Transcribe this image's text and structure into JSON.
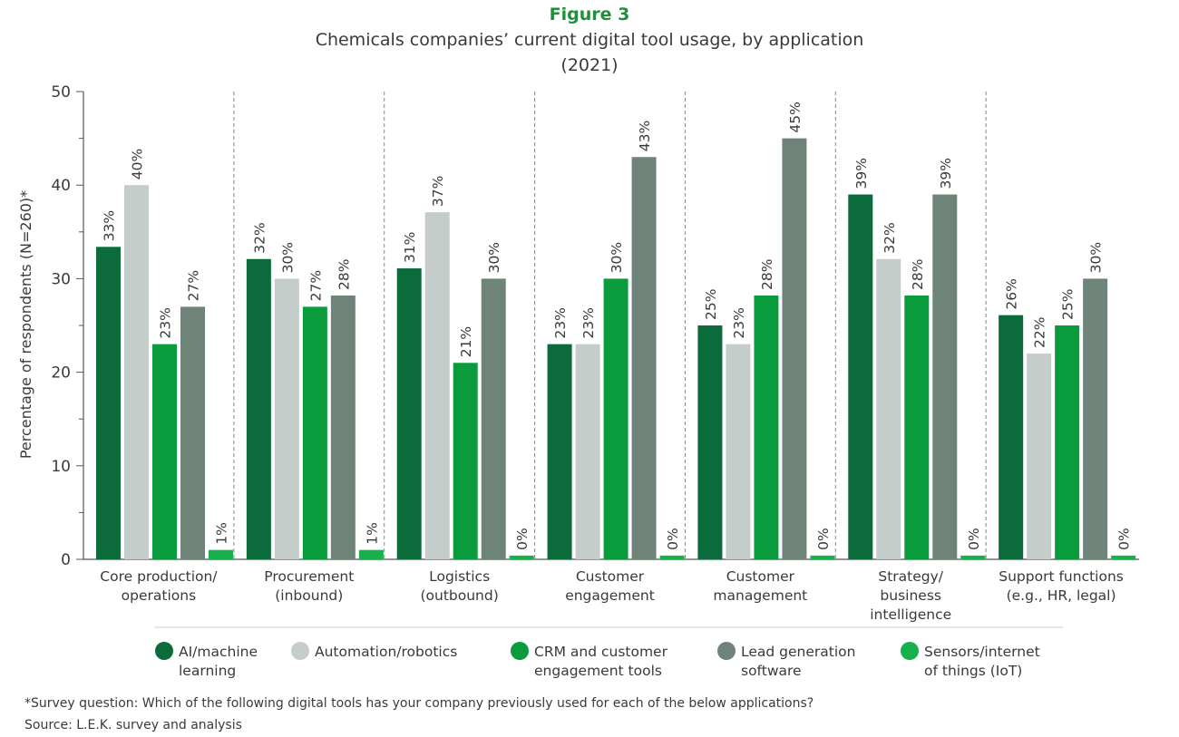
{
  "colors": {
    "accent": "#1f8f3a",
    "axis": "#555555",
    "separator": "#888888"
  },
  "chart_data": {
    "type": "bar",
    "figure_label": "Figure 3",
    "title_lines": [
      "Chemicals companies’ current digital tool usage, by application",
      "(2021)"
    ],
    "ylabel": "Percentage of respondents (N=260)*",
    "ylim": [
      0,
      50
    ],
    "yticks": [
      0,
      10,
      20,
      30,
      40,
      50
    ],
    "categories": [
      [
        "Core production/",
        "operations"
      ],
      [
        "Procurement",
        "(inbound)"
      ],
      [
        "Logistics",
        "(outbound)"
      ],
      [
        "Customer",
        "engagement"
      ],
      [
        "Customer",
        "management"
      ],
      [
        "Strategy/",
        "business",
        "intelligence"
      ],
      [
        "Support functions",
        "(e.g., HR, legal)"
      ]
    ],
    "series": [
      {
        "name_lines": [
          "AI/machine",
          "learning"
        ],
        "color": "#0b6b3a",
        "values": [
          33.4,
          32.1,
          31.1,
          23,
          25,
          39,
          26.1
        ],
        "labels": [
          "33%",
          "32%",
          "31%",
          "23%",
          "25%",
          "39%",
          "26%"
        ]
      },
      {
        "name_lines": [
          "Automation/robotics"
        ],
        "color": "#c5cdcb",
        "values": [
          40,
          30,
          37.1,
          23,
          23,
          32.1,
          22
        ],
        "labels": [
          "40%",
          "30%",
          "37%",
          "23%",
          "23%",
          "32%",
          "22%"
        ]
      },
      {
        "name_lines": [
          "CRM and customer",
          "engagement tools"
        ],
        "color": "#0a9b3c",
        "values": [
          23,
          27,
          21,
          30,
          28.2,
          28.2,
          25
        ],
        "labels": [
          "23%",
          "27%",
          "21%",
          "30%",
          "28%",
          "28%",
          "25%"
        ]
      },
      {
        "name_lines": [
          "Lead generation",
          "software"
        ],
        "color": "#6f8479",
        "values": [
          27,
          28.2,
          30,
          43,
          45,
          39,
          30
        ],
        "labels": [
          "27%",
          "28%",
          "30%",
          "43%",
          "45%",
          "39%",
          "30%"
        ]
      },
      {
        "name_lines": [
          "Sensors/internet",
          "of things (IoT)"
        ],
        "color": "#16b14b",
        "values": [
          1,
          1,
          0.4,
          0.4,
          0.4,
          0.4,
          0.4
        ],
        "labels": [
          "1%",
          "1%",
          "0%",
          "0%",
          "0%",
          "0%",
          "0%"
        ]
      }
    ],
    "grid": false,
    "legend_position": "bottom"
  },
  "footnotes": [
    "*Survey question: Which of the following digital tools has your company previously used for each of the below applications?",
    "Source: L.E.K. survey and analysis"
  ]
}
